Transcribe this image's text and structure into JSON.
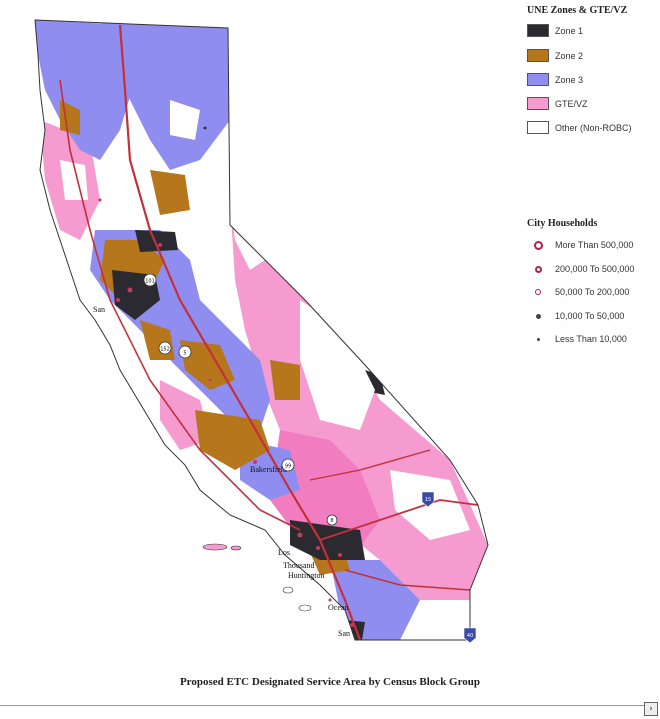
{
  "map": {
    "city_labels": [
      "San",
      "Bakersfield",
      "Los",
      "Thousand",
      "Huntington",
      "Ocean",
      "San"
    ],
    "route_shields": [
      "101",
      "5",
      "15",
      "40",
      "8",
      "99",
      "152"
    ]
  },
  "legend_zones": {
    "title": "UNE Zones & GTE/VZ",
    "items": [
      {
        "label": "Zone 1",
        "color": "#2b2a30"
      },
      {
        "label": "Zone 2",
        "color": "#b5761c"
      },
      {
        "label": "Zone 3",
        "color": "#8f8ef0"
      },
      {
        "label": "GTE/VZ",
        "color": "#f59bd0"
      },
      {
        "label": "Other (Non-ROBC)",
        "color": "#ffffff"
      }
    ]
  },
  "legend_cities": {
    "title": "City Households",
    "items": [
      {
        "label": "More Than 500,000"
      },
      {
        "label": "200,000 To 500,000"
      },
      {
        "label": "50,000 To 200,000"
      },
      {
        "label": "10,000 To 50,000"
      },
      {
        "label": "Less Than 10,000"
      }
    ]
  },
  "caption": "Proposed ETC Designated Service Area by Census Block Group"
}
